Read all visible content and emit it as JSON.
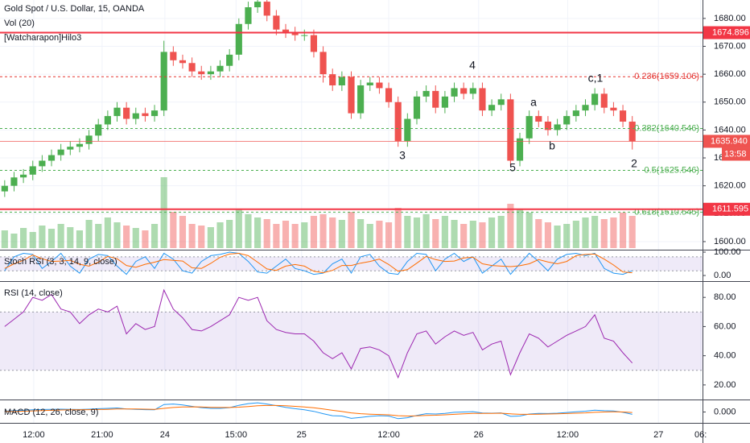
{
  "chart_data": [
    {
      "type": "candlestick",
      "title": "Gold Spot / U.S. Dollar, 15, OANDA",
      "indicators": [
        "Vol (20)",
        "[Watcharapon]Hilo3"
      ],
      "up_color": "#4caf50",
      "down_color": "#ef5350",
      "xlim": [
        -0.5,
        74.5
      ],
      "ylim": [
        1597.1,
        1686.6
      ],
      "xticks": [
        {
          "value": 3.1,
          "label": "12:00"
        },
        {
          "value": 10.4,
          "label": "21:00"
        },
        {
          "value": 17.1,
          "label": "24"
        },
        {
          "value": 24.7,
          "label": "15:00"
        },
        {
          "value": 31.7,
          "label": "25"
        },
        {
          "value": 41,
          "label": "12:00"
        },
        {
          "value": 50.6,
          "label": "26"
        },
        {
          "value": 60.1,
          "label": "12:00"
        },
        {
          "value": 69.8,
          "label": "27"
        },
        {
          "value": 74.3,
          "label": "06:"
        }
      ],
      "yticks": [
        {
          "value": 1600,
          "label": "1600.00"
        },
        {
          "value": 1610,
          "label": "1610.00"
        },
        {
          "value": 1620,
          "label": "1620.00"
        },
        {
          "value": 1630,
          "label": "1630.00"
        },
        {
          "value": 1640,
          "label": "1640.00"
        },
        {
          "value": 1650,
          "label": "1650.00"
        },
        {
          "value": 1660,
          "label": "1660.00"
        },
        {
          "value": 1670,
          "label": "1670.00"
        },
        {
          "value": 1680,
          "label": "1680.00"
        }
      ],
      "grid": true,
      "open": [
        1618,
        1620,
        1623,
        1624,
        1627,
        1629,
        1631,
        1633,
        1634,
        1635,
        1638,
        1642,
        1645,
        1648,
        1644,
        1646,
        1645,
        1647,
        1668,
        1665,
        1664,
        1661,
        1660,
        1661,
        1663,
        1667,
        1678,
        1684,
        1686,
        1681,
        1676,
        1675,
        1674,
        1674,
        1668,
        1660,
        1656,
        1659,
        1646,
        1656,
        1657,
        1655,
        1650,
        1636,
        1644,
        1652,
        1654,
        1648,
        1652,
        1655,
        1653,
        1655,
        1647,
        1649,
        1651,
        1629,
        1637,
        1645,
        1643,
        1640,
        1642,
        1645,
        1647,
        1649,
        1653,
        1648,
        1647,
        1643
      ],
      "high": [
        1622,
        1625,
        1626,
        1629,
        1631,
        1633,
        1635,
        1636,
        1637,
        1640,
        1644,
        1647,
        1650,
        1650,
        1648,
        1648,
        1649,
        1672,
        1670,
        1667,
        1666,
        1663,
        1663,
        1665,
        1669,
        1680,
        1686,
        1688,
        1688,
        1683,
        1678,
        1677,
        1676,
        1676,
        1670,
        1662,
        1661,
        1661,
        1658,
        1659,
        1659,
        1657,
        1652,
        1646,
        1654,
        1656,
        1656,
        1654,
        1657,
        1657,
        1657,
        1657,
        1651,
        1653,
        1653,
        1639,
        1647,
        1647,
        1645,
        1644,
        1647,
        1649,
        1651,
        1655,
        1655,
        1650,
        1649,
        1645
      ],
      "low": [
        1616,
        1618,
        1621,
        1622,
        1625,
        1627,
        1629,
        1631,
        1632,
        1633,
        1636,
        1640,
        1643,
        1642,
        1642,
        1643,
        1643,
        1645,
        1663,
        1662,
        1659,
        1658,
        1658,
        1659,
        1661,
        1665,
        1676,
        1682,
        1679,
        1674,
        1673,
        1672,
        1672,
        1666,
        1657,
        1654,
        1654,
        1644,
        1644,
        1654,
        1653,
        1648,
        1634,
        1634,
        1642,
        1650,
        1646,
        1646,
        1650,
        1651,
        1651,
        1645,
        1645,
        1647,
        1627,
        1627,
        1635,
        1641,
        1638,
        1638,
        1640,
        1643,
        1645,
        1647,
        1646,
        1645,
        1641,
        1633
      ],
      "close": [
        1620,
        1623,
        1624,
        1627,
        1629,
        1631,
        1633,
        1634,
        1635,
        1638,
        1642,
        1645,
        1648,
        1644,
        1646,
        1645,
        1647,
        1668,
        1665,
        1664,
        1661,
        1660,
        1661,
        1663,
        1667,
        1678,
        1684,
        1686,
        1681,
        1676,
        1675,
        1674,
        1674,
        1668,
        1660,
        1656,
        1659,
        1646,
        1656,
        1657,
        1655,
        1650,
        1636,
        1644,
        1652,
        1654,
        1648,
        1652,
        1655,
        1653,
        1655,
        1647,
        1649,
        1651,
        1629,
        1637,
        1645,
        1643,
        1640,
        1642,
        1645,
        1647,
        1649,
        1653,
        1648,
        1647,
        1643,
        1635.94
      ],
      "volume": {
        "ylim": [
          0,
          100
        ],
        "values": [
          22,
          18,
          25,
          20,
          28,
          24,
          30,
          26,
          22,
          35,
          30,
          38,
          32,
          28,
          25,
          22,
          30,
          88,
          45,
          40,
          30,
          28,
          26,
          32,
          35,
          48,
          42,
          38,
          36,
          30,
          34,
          30,
          32,
          40,
          42,
          38,
          35,
          45,
          36,
          30,
          34,
          32,
          50,
          40,
          38,
          42,
          36,
          40,
          35,
          30,
          34,
          32,
          38,
          40,
          55,
          48,
          44,
          36,
          32,
          28,
          30,
          34,
          38,
          40,
          36,
          38,
          44,
          40
        ]
      },
      "support_lines": {
        "color": "#f23645",
        "values": [
          1674.896,
          1611.595
        ]
      },
      "levels": [
        {
          "value": 1659.106,
          "label": "0.236(1659.106)",
          "color": "#e53935"
        },
        {
          "value": 1640.546,
          "label": "0.382(1640.546)",
          "color": "#4caf50"
        },
        {
          "value": 1625.546,
          "label": "0.5(1625.546)",
          "color": "#4caf50"
        },
        {
          "value": 1610.545,
          "label": "0.618(1610.545)",
          "color": "#4caf50"
        }
      ],
      "last_price": {
        "value": 1635.94,
        "label": "1635.940"
      },
      "countdown": "13:58",
      "annotations": [
        "3",
        "4",
        "5",
        "a",
        "b",
        "c,1",
        "2"
      ]
    },
    {
      "type": "line",
      "title": "Stoch RSI (3, 3, 14, 9, close)",
      "ylim": [
        -24,
        107
      ],
      "band": [
        20,
        80
      ],
      "yticks": [
        {
          "value": 100,
          "label": "100.00"
        },
        {
          "value": 0,
          "label": "0.00"
        }
      ],
      "series": [
        {
          "color": "#2196f3",
          "values": [
            20,
            80,
            95,
            90,
            30,
            60,
            95,
            40,
            10,
            70,
            90,
            85,
            40,
            5,
            60,
            80,
            30,
            95,
            70,
            20,
            10,
            60,
            85,
            90,
            100,
            95,
            60,
            15,
            10,
            40,
            70,
            30,
            20,
            5,
            10,
            50,
            70,
            10,
            80,
            90,
            40,
            10,
            5,
            60,
            95,
            90,
            20,
            70,
            95,
            60,
            80,
            10,
            40,
            70,
            5,
            50,
            95,
            60,
            20,
            70,
            90,
            95,
            85,
            95,
            30,
            10,
            5,
            20
          ]
        },
        {
          "color": "#ff6d00",
          "values": [
            30,
            50,
            65,
            88,
            72,
            60,
            62,
            65,
            48,
            40,
            57,
            82,
            72,
            43,
            35,
            48,
            57,
            68,
            65,
            62,
            33,
            30,
            52,
            78,
            92,
            95,
            85,
            57,
            28,
            22,
            40,
            47,
            40,
            18,
            12,
            22,
            43,
            43,
            53,
            60,
            70,
            47,
            18,
            25,
            53,
            82,
            68,
            60,
            62,
            75,
            78,
            50,
            43,
            40,
            38,
            42,
            50,
            68,
            58,
            50,
            60,
            85,
            90,
            92,
            70,
            45,
            15,
            12
          ]
        }
      ]
    },
    {
      "type": "line",
      "title": "RSI (14, close)",
      "ylim": [
        10,
        90.6
      ],
      "band": [
        30,
        70
      ],
      "yticks": [
        {
          "value": 80,
          "label": "80.00"
        },
        {
          "value": 60,
          "label": "60.00"
        },
        {
          "value": 40,
          "label": "40.00"
        },
        {
          "value": 20,
          "label": "20.00"
        }
      ],
      "series": [
        {
          "color": "#9c27b0",
          "values": [
            60,
            65,
            70,
            80,
            78,
            82,
            72,
            70,
            62,
            68,
            72,
            70,
            74,
            55,
            62,
            58,
            60,
            85,
            72,
            66,
            58,
            57,
            60,
            64,
            68,
            80,
            78,
            80,
            64,
            58,
            56,
            55,
            55,
            50,
            42,
            38,
            42,
            31,
            45,
            46,
            44,
            40,
            25,
            42,
            55,
            57,
            48,
            53,
            57,
            54,
            56,
            44,
            48,
            50,
            27,
            42,
            55,
            52,
            46,
            50,
            54,
            57,
            60,
            68,
            52,
            50,
            42,
            35
          ]
        }
      ]
    },
    {
      "type": "line",
      "title": "MACD (12, 26, close, 9)",
      "ylim": [
        -6.5,
        7
      ],
      "yticks": [
        {
          "value": 0,
          "label": "0.000"
        }
      ],
      "series": [
        {
          "color": "#2196f3",
          "values": [
            0.5,
            0.8,
            1.0,
            1.3,
            1.5,
            1.6,
            1.7,
            1.6,
            1.5,
            1.7,
            2.0,
            2.2,
            2.4,
            1.8,
            1.6,
            1.4,
            1.3,
            4.5,
            4.8,
            4.2,
            3.4,
            2.6,
            2.2,
            2.2,
            2.6,
            4.0,
            5.0,
            5.5,
            4.8,
            3.8,
            2.8,
            2.0,
            1.3,
            0.4,
            -1.0,
            -2.2,
            -2.4,
            -3.8,
            -3.2,
            -2.6,
            -2.2,
            -2.4,
            -4.0,
            -3.4,
            -2.0,
            -1.0,
            -1.2,
            -0.8,
            -0.2,
            0.0,
            0.2,
            -0.6,
            -0.7,
            -0.5,
            -2.6,
            -2.4,
            -1.2,
            -0.8,
            -0.9,
            -0.7,
            -0.3,
            0.1,
            0.5,
            1.1,
            0.8,
            0.6,
            -0.2,
            -1.4
          ]
        },
        {
          "color": "#ff6d00",
          "values": [
            0.3,
            0.4,
            0.5,
            0.7,
            0.9,
            1.0,
            1.2,
            1.3,
            1.3,
            1.4,
            1.5,
            1.6,
            1.8,
            1.8,
            1.8,
            1.7,
            1.6,
            2.2,
            2.7,
            3.0,
            3.1,
            3.0,
            2.8,
            2.7,
            2.7,
            2.9,
            3.3,
            3.7,
            3.9,
            3.9,
            3.7,
            3.4,
            3.0,
            2.5,
            1.8,
            1.0,
            0.3,
            -0.5,
            -1.0,
            -1.3,
            -1.5,
            -1.7,
            -2.2,
            -2.4,
            -2.3,
            -2.0,
            -1.9,
            -1.7,
            -1.4,
            -1.1,
            -0.8,
            -0.8,
            -0.8,
            -0.7,
            -1.1,
            -1.4,
            -1.4,
            -1.3,
            -1.2,
            -1.1,
            -0.9,
            -0.7,
            -0.5,
            -0.2,
            0.0,
            0.1,
            0.0,
            -0.3
          ]
        }
      ]
    }
  ]
}
